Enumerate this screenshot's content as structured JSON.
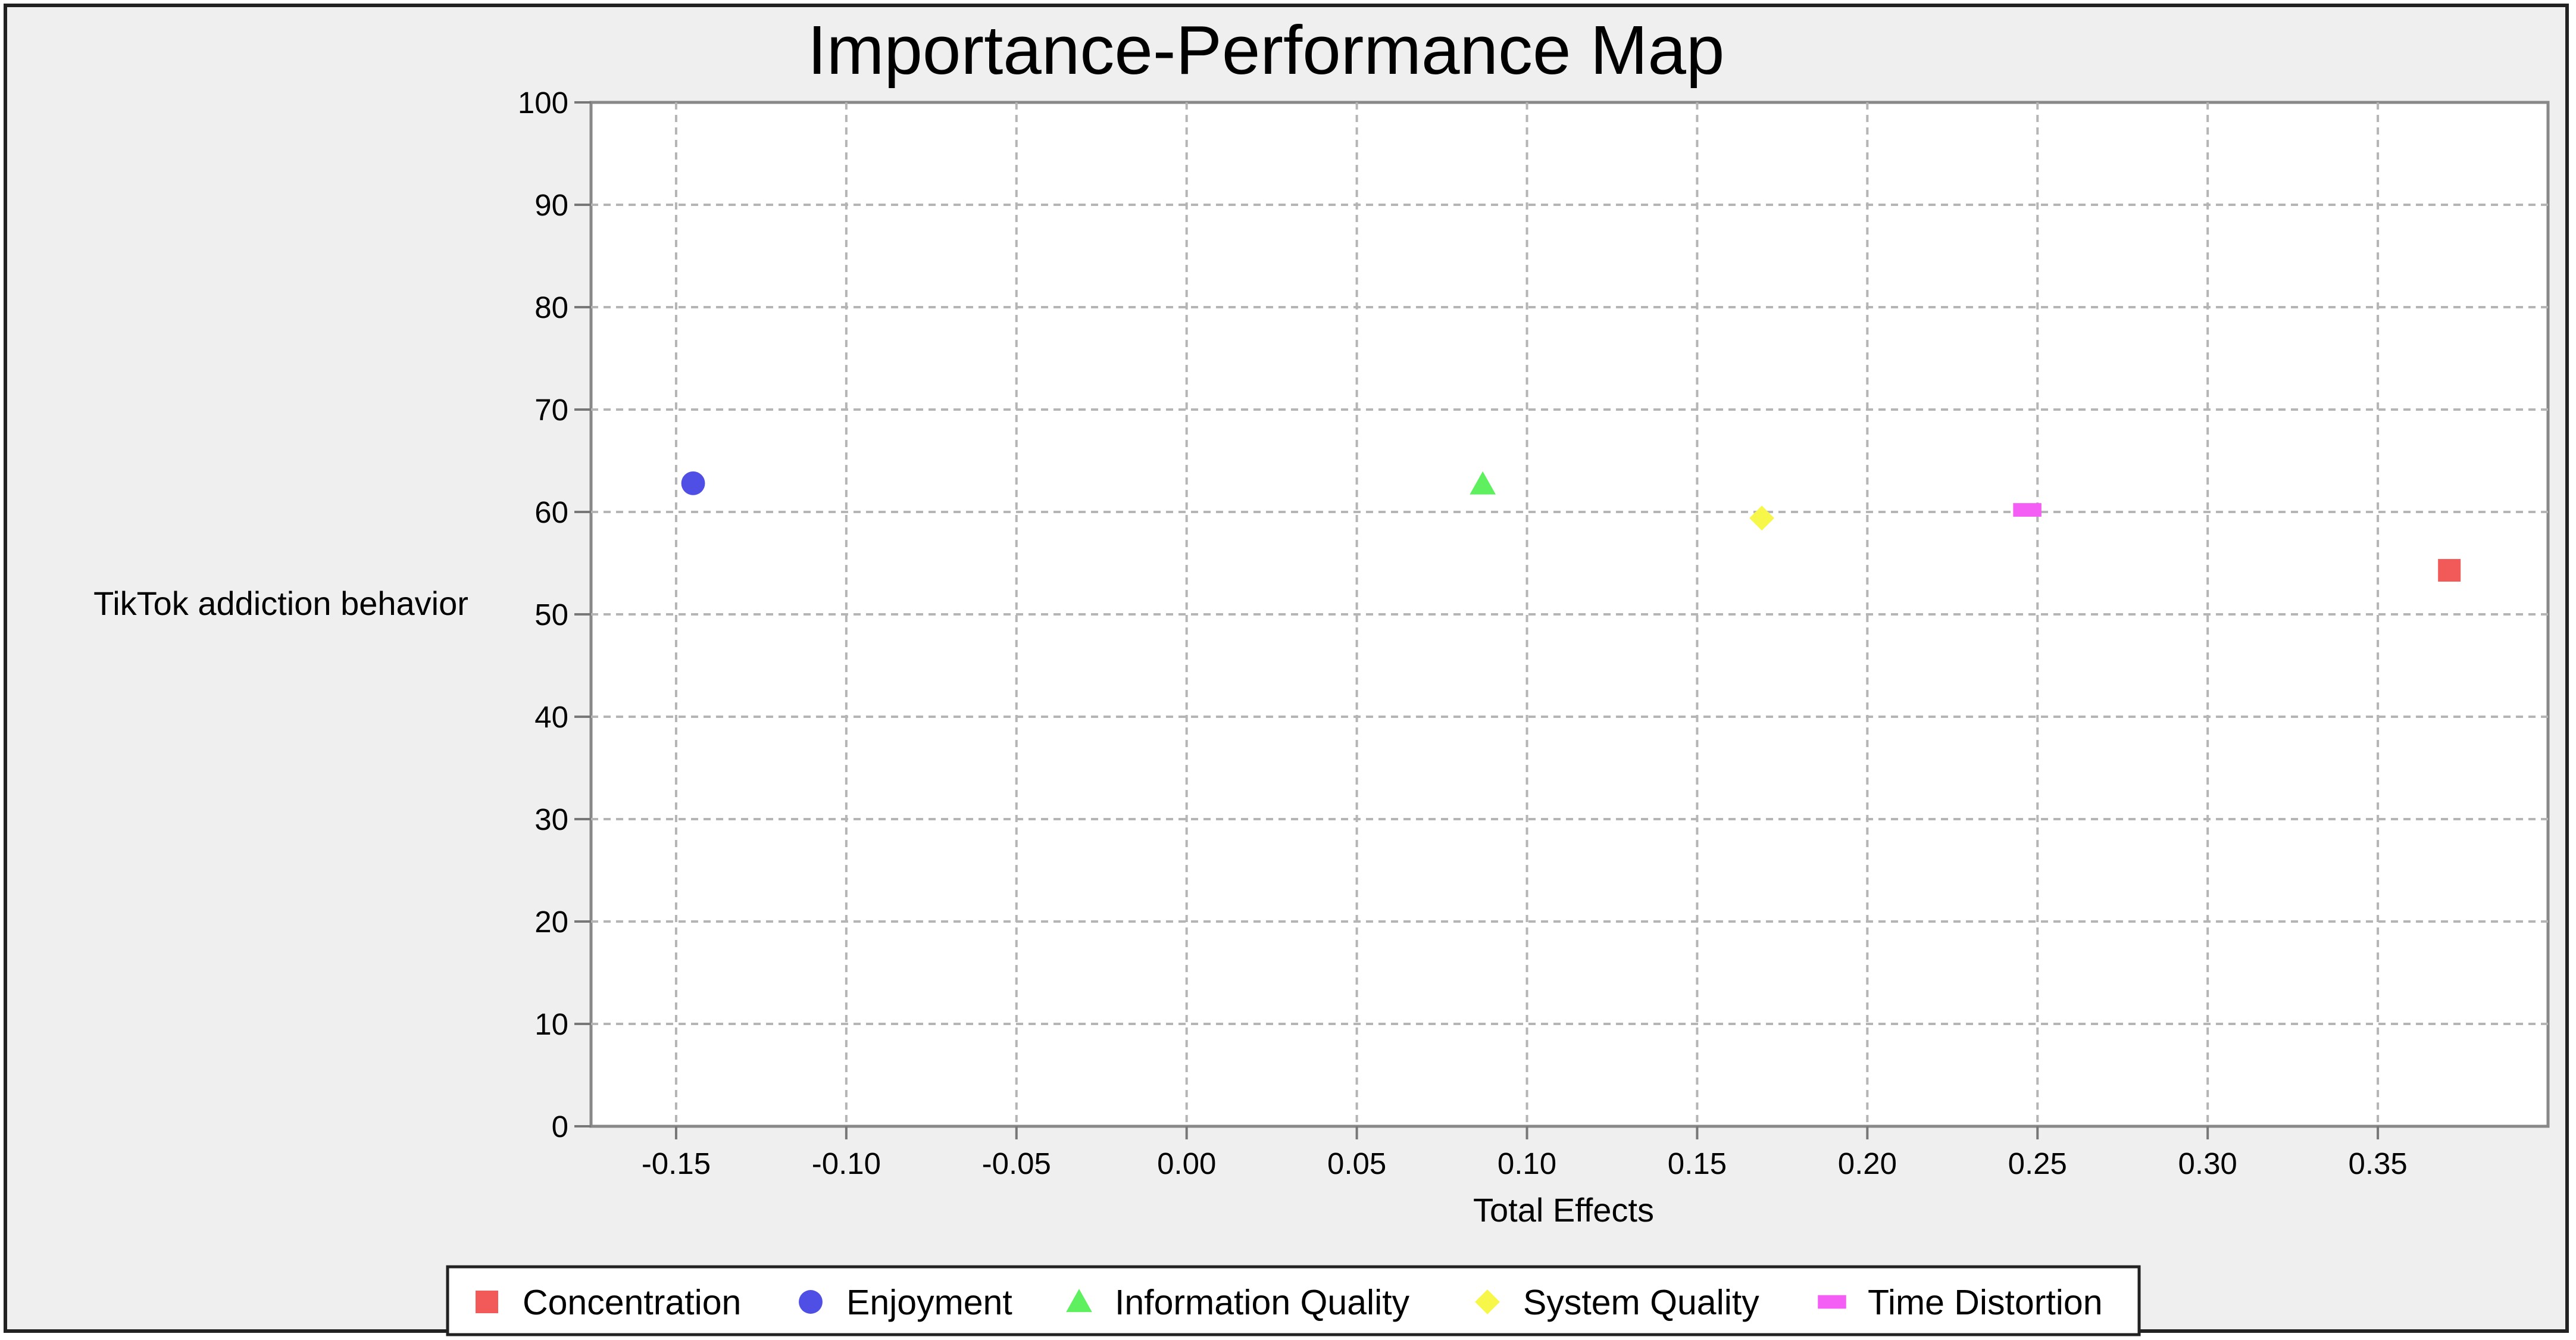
{
  "chart_data": {
    "type": "scatter",
    "title": "Importance-Performance Map",
    "xlabel": "Total Effects",
    "ylabel": "TikTok addiction behavior",
    "xlim": [
      -0.175,
      0.4
    ],
    "ylim": [
      0,
      100
    ],
    "x_ticks": [
      "-0.15",
      "-0.10",
      "-0.05",
      "0.00",
      "0.05",
      "0.10",
      "0.15",
      "0.20",
      "0.25",
      "0.30",
      "0.35"
    ],
    "y_ticks": [
      "0",
      "10",
      "20",
      "30",
      "40",
      "50",
      "60",
      "70",
      "80",
      "90",
      "100"
    ],
    "grid": true,
    "legend_position": "bottom",
    "series": [
      {
        "name": "Concentration",
        "marker": "square",
        "color": "#f25a5a",
        "x": 0.371,
        "y": 54.3
      },
      {
        "name": "Enjoyment",
        "marker": "circle",
        "color": "#4f4fe6",
        "x": -0.145,
        "y": 62.8
      },
      {
        "name": "Information Quality",
        "marker": "triangle",
        "color": "#5ef05e",
        "x": 0.087,
        "y": 62.7
      },
      {
        "name": "System Quality",
        "marker": "diamond",
        "color": "#f7f74a",
        "x": 0.169,
        "y": 59.4
      },
      {
        "name": "Time Distortion",
        "marker": "rect",
        "color": "#f45ef4",
        "x": 0.247,
        "y": 60.2
      }
    ]
  }
}
